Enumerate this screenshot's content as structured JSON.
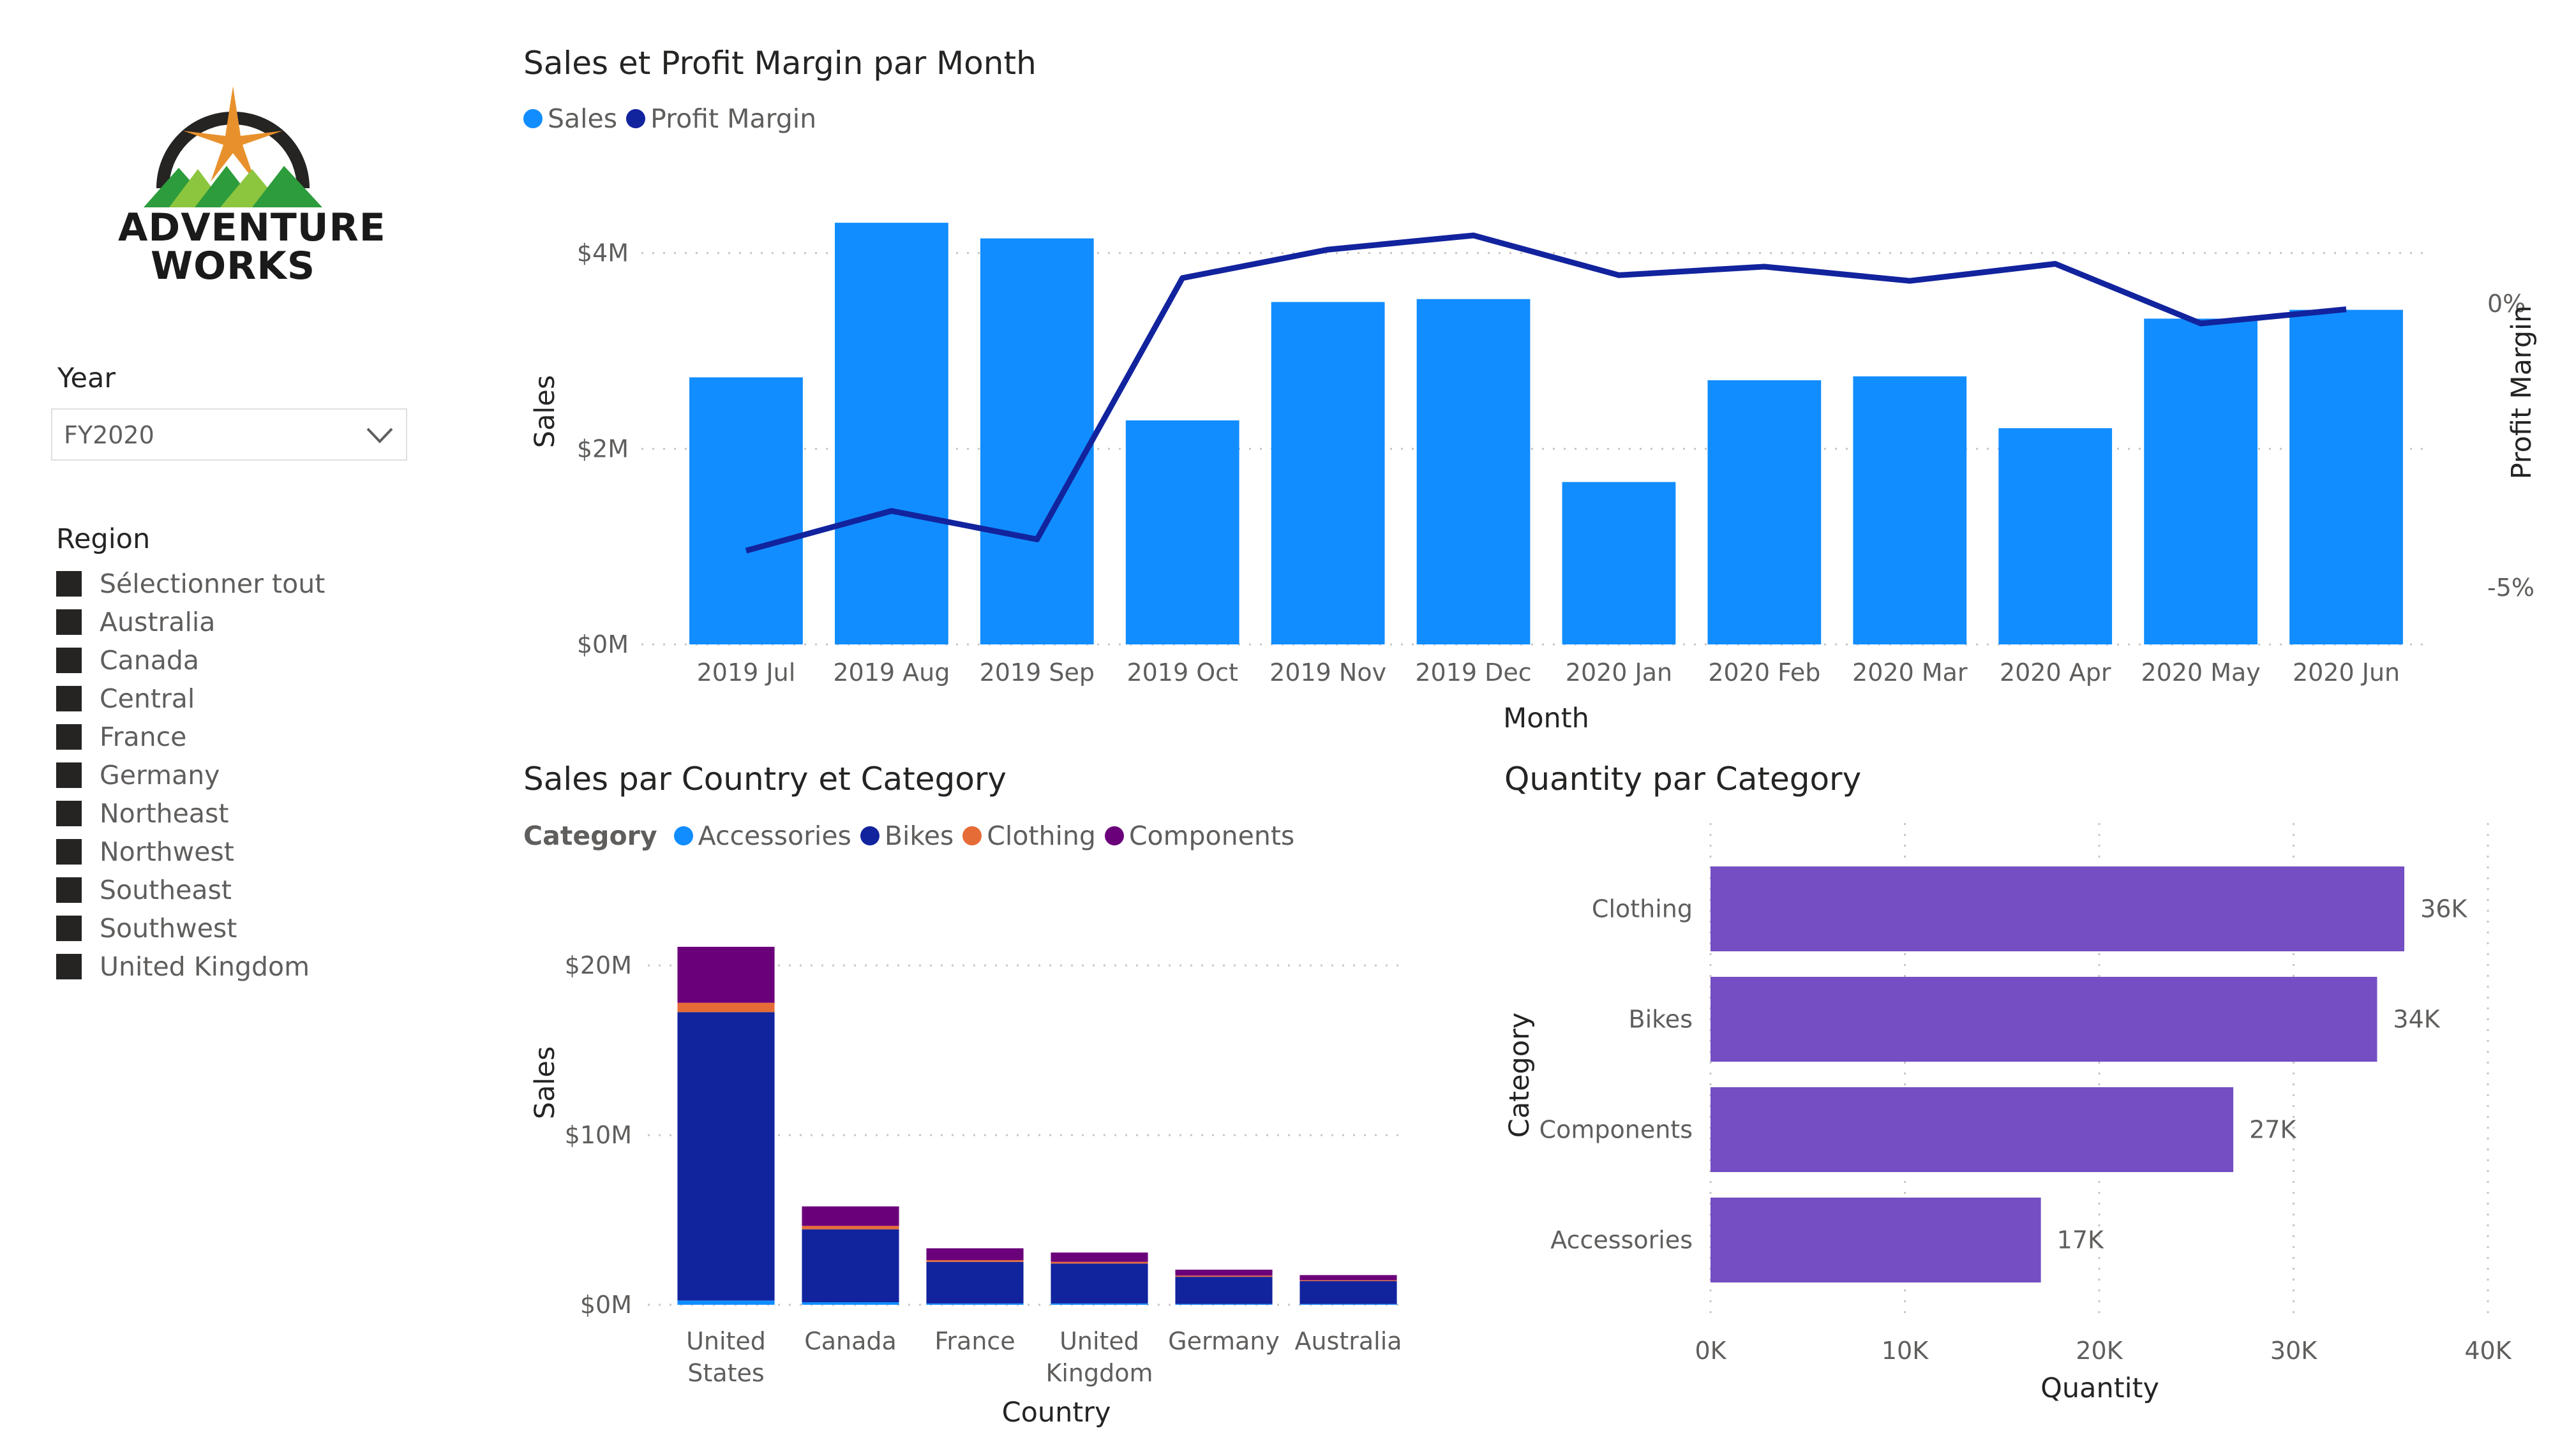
{
  "logo": {
    "line1": "ADVENTURE",
    "line2": "WORKS",
    "colors": {
      "ring": "#252423",
      "star": "#e8912c",
      "mountain_light": "#8cc63f",
      "mountain_dark": "#2d9c3c"
    }
  },
  "slicers": {
    "year": {
      "title": "Year",
      "value": "FY2020",
      "icon": "chevron-down-icon"
    },
    "region": {
      "title": "Region",
      "items": [
        "Sélectionner tout",
        "Australia",
        "Canada",
        "Central",
        "France",
        "Germany",
        "Northeast",
        "Northwest",
        "Southeast",
        "Southwest",
        "United Kingdom"
      ]
    }
  },
  "colors": {
    "sales": "#118dff",
    "profit_margin": "#12239e",
    "accessories": "#118dff",
    "bikes": "#12239e",
    "clothing": "#e66c37",
    "components": "#6b007b",
    "quantity": "#744ec2",
    "grid": "#c8c6c4",
    "axis_text": "#605e5c"
  },
  "chart_data": [
    {
      "id": "sales-profit",
      "type": "bar+line",
      "title": "Sales et Profit Margin par Month",
      "legend": [
        {
          "name": "Sales",
          "color": "#118dff"
        },
        {
          "name": "Profit Margin",
          "color": "#12239e"
        }
      ],
      "legend_position": "top-left",
      "xlabel": "Month",
      "ylabel": "Sales",
      "y2label": "Profit Margin",
      "categories": [
        "2019 Jul",
        "2019 Aug",
        "2019 Sep",
        "2019 Oct",
        "2019 Nov",
        "2019 Dec",
        "2020 Jan",
        "2020 Feb",
        "2020 Mar",
        "2020 Apr",
        "2020 May",
        "2020 Jun"
      ],
      "series": [
        {
          "name": "Sales",
          "axis": "left",
          "unit": "$M",
          "values": [
            2.73,
            4.31,
            4.15,
            2.29,
            3.5,
            3.53,
            1.66,
            2.7,
            2.74,
            2.21,
            3.33,
            3.42
          ]
        },
        {
          "name": "Profit Margin",
          "axis": "right",
          "unit": "%",
          "values": [
            -4.35,
            -3.65,
            -4.15,
            0.45,
            0.95,
            1.2,
            0.5,
            0.65,
            0.4,
            0.7,
            -0.35,
            -0.1
          ]
        }
      ],
      "y_ticks": [
        "$0M",
        "$2M",
        "$4M"
      ],
      "y_ticks_values": [
        0,
        2,
        4
      ],
      "ylim": [
        0,
        4.5
      ],
      "y2_ticks": [
        "0%",
        "-5%"
      ],
      "y2_ticks_values": [
        0,
        -5
      ],
      "y2lim": [
        -6.0,
        1.75
      ],
      "grid": true
    },
    {
      "id": "sales-country-category",
      "type": "stacked-bar",
      "title": "Sales par Country et Category",
      "legend_title": "Category",
      "legend_position": "top-left",
      "legend": [
        {
          "name": "Accessories",
          "color": "#118dff"
        },
        {
          "name": "Bikes",
          "color": "#12239e"
        },
        {
          "name": "Clothing",
          "color": "#e66c37"
        },
        {
          "name": "Components",
          "color": "#6b007b"
        }
      ],
      "xlabel": "Country",
      "ylabel": "Sales",
      "categories": [
        [
          "United",
          "States"
        ],
        [
          "Canada"
        ],
        [
          "France"
        ],
        [
          "United",
          "Kingdom"
        ],
        [
          "Germany"
        ],
        [
          "Australia"
        ]
      ],
      "series": [
        {
          "name": "Accessories",
          "values": [
            0.25,
            0.15,
            0.08,
            0.08,
            0.05,
            0.05
          ]
        },
        {
          "name": "Bikes",
          "values": [
            17.0,
            4.3,
            2.45,
            2.35,
            1.6,
            1.35
          ]
        },
        {
          "name": "Clothing",
          "values": [
            0.55,
            0.2,
            0.1,
            0.1,
            0.07,
            0.05
          ]
        },
        {
          "name": "Components",
          "values": [
            3.3,
            1.15,
            0.7,
            0.55,
            0.35,
            0.3
          ]
        }
      ],
      "y_ticks": [
        "$0M",
        "$10M",
        "$20M"
      ],
      "y_ticks_values": [
        0,
        10,
        20
      ],
      "ylim": [
        0,
        22
      ],
      "grid": true
    },
    {
      "id": "quantity-category",
      "type": "horizontal-bar",
      "title": "Quantity par Category",
      "xlabel": "Quantity",
      "ylabel": "Category",
      "categories": [
        "Clothing",
        "Bikes",
        "Components",
        "Accessories"
      ],
      "values": [
        35700,
        34300,
        26900,
        17000
      ],
      "data_labels": [
        "36K",
        "34K",
        "27K",
        "17K"
      ],
      "x_ticks": [
        "0K",
        "10K",
        "20K",
        "30K",
        "40K"
      ],
      "x_ticks_values": [
        0,
        10000,
        20000,
        30000,
        40000
      ],
      "xlim": [
        0,
        40000
      ],
      "grid": true
    }
  ]
}
